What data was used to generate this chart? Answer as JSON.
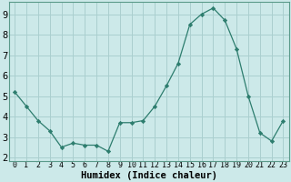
{
  "x": [
    0,
    1,
    2,
    3,
    4,
    5,
    6,
    7,
    8,
    9,
    10,
    11,
    12,
    13,
    14,
    15,
    16,
    17,
    18,
    19,
    20,
    21,
    22,
    23
  ],
  "y": [
    5.2,
    4.5,
    3.8,
    3.3,
    2.5,
    2.7,
    2.6,
    2.6,
    2.3,
    3.7,
    3.7,
    3.8,
    4.5,
    5.5,
    6.6,
    8.5,
    9.0,
    9.3,
    8.7,
    7.3,
    5.0,
    3.2,
    2.8,
    3.8
  ],
  "line_color": "#2d7d6e",
  "marker": "D",
  "marker_size": 2.2,
  "bg_color": "#cce9e9",
  "grid_color": "#aacfcf",
  "xlabel": "Humidex (Indice chaleur)",
  "ylim": [
    1.8,
    9.6
  ],
  "xlim": [
    -0.5,
    23.5
  ],
  "yticks": [
    2,
    3,
    4,
    5,
    6,
    7,
    8,
    9
  ],
  "xticks": [
    0,
    1,
    2,
    3,
    4,
    5,
    6,
    7,
    8,
    9,
    10,
    11,
    12,
    13,
    14,
    15,
    16,
    17,
    18,
    19,
    20,
    21,
    22,
    23
  ],
  "spine_color": "#5a9a8a",
  "xlabel_fontsize": 7.5,
  "ytick_fontsize": 7.5,
  "xtick_fontsize": 6.0
}
